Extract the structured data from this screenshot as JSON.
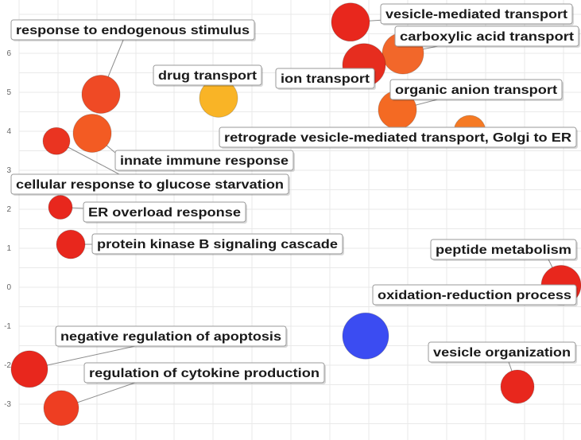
{
  "chart_data": {
    "type": "scatter",
    "title": "",
    "xlabel": "",
    "ylabel": "",
    "ylim": [
      -3.8,
      7.4
    ],
    "y_ticks": [
      6,
      5,
      4,
      3,
      2,
      1,
      0,
      -1,
      -2,
      -3
    ],
    "grid": true,
    "color_scale": {
      "low": "#3b4cf2",
      "mid": "#f5b51e",
      "high": "#e8271d"
    },
    "points": [
      {
        "label": "vesicle-mediated transport",
        "y": 6.8,
        "color": "#e8271d"
      },
      {
        "label": "carboxylic acid transport",
        "y": 6.0,
        "color": "#f2672a"
      },
      {
        "label": "ion transport",
        "y": 5.7,
        "color": "#e62d1f"
      },
      {
        "label": "response to endogenous stimulus",
        "y": 4.95,
        "color": "#ef4a25"
      },
      {
        "label": "drug transport",
        "y": 4.85,
        "color": "#f9b426"
      },
      {
        "label": "organic anion transport",
        "y": 4.55,
        "color": "#f46a23"
      },
      {
        "label": "retrograde vesicle-mediated transport, Golgi to ER",
        "y": 4.0,
        "color": "#f57a24"
      },
      {
        "label": "innate immune response",
        "y": 3.95,
        "color": "#f35b23"
      },
      {
        "label": "cellular response to glucose starvation",
        "y": 3.75,
        "color": "#ea3421"
      },
      {
        "label": "ER overload response",
        "y": 2.05,
        "color": "#e8271d"
      },
      {
        "label": "protein kinase B signaling cascade",
        "y": 1.1,
        "color": "#e8271d"
      },
      {
        "label": "peptide metabolism",
        "y": 0.05,
        "color": "#e8271d"
      },
      {
        "label": "oxidation-reduction process",
        "y": -1.25,
        "color": "#3b4cf2"
      },
      {
        "label": "negative regulation of apoptosis",
        "y": -2.1,
        "color": "#e8271d"
      },
      {
        "label": "vesicle organization",
        "y": -2.55,
        "color": "#e8271d"
      },
      {
        "label": "regulation of cytokine production",
        "y": -3.1,
        "color": "#ee3e22"
      }
    ]
  }
}
